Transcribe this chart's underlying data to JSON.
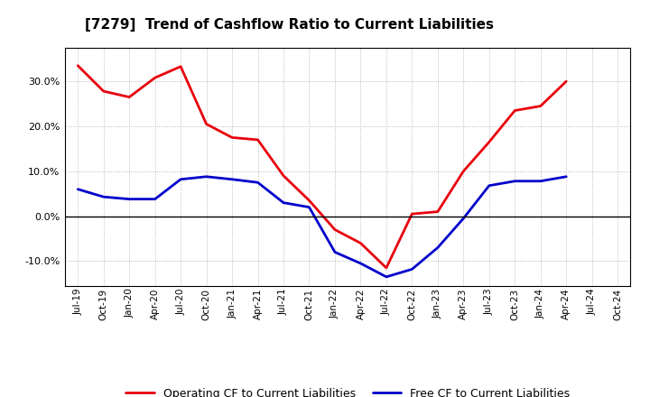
{
  "title": "[7279]  Trend of Cashflow Ratio to Current Liabilities",
  "x_labels": [
    "Jul-19",
    "Oct-19",
    "Jan-20",
    "Apr-20",
    "Jul-20",
    "Oct-20",
    "Jan-21",
    "Apr-21",
    "Jul-21",
    "Oct-21",
    "Jan-22",
    "Apr-22",
    "Jul-22",
    "Oct-22",
    "Jan-23",
    "Apr-23",
    "Jul-23",
    "Oct-23",
    "Jan-24",
    "Apr-24",
    "Jul-24",
    "Oct-24"
  ],
  "operating_cf": [
    0.335,
    0.278,
    0.265,
    0.308,
    0.333,
    0.205,
    0.175,
    0.17,
    0.09,
    0.035,
    -0.03,
    -0.06,
    -0.115,
    0.005,
    0.01,
    0.1,
    0.165,
    0.235,
    0.245,
    0.3,
    null,
    null
  ],
  "free_cf": [
    0.06,
    0.043,
    0.038,
    0.038,
    0.082,
    0.088,
    0.082,
    0.075,
    0.03,
    0.02,
    -0.08,
    -0.105,
    -0.135,
    -0.118,
    -0.07,
    -0.005,
    0.068,
    0.078,
    0.078,
    0.088,
    null,
    null
  ],
  "operating_color": "#e8000d",
  "free_color": "#0000cc",
  "background_color": "#ffffff",
  "plot_bg_color": "#ffffff",
  "ylim": [
    -0.155,
    0.375
  ],
  "yticks": [
    -0.1,
    0.0,
    0.1,
    0.2,
    0.3
  ],
  "legend_labels": [
    "Operating CF to Current Liabilities",
    "Free CF to Current Liabilities"
  ],
  "linewidth": 2.0
}
